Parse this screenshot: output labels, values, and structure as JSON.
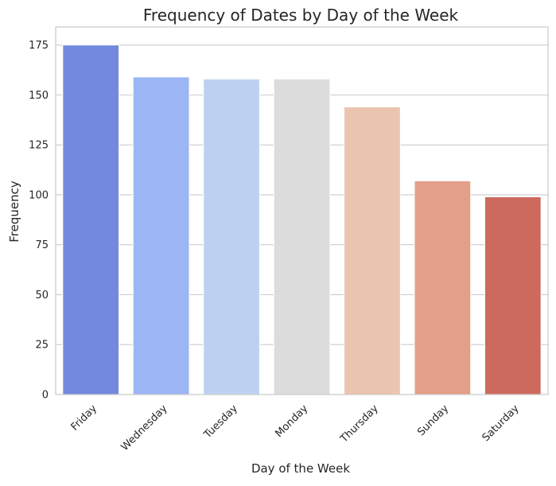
{
  "chart_data": {
    "type": "bar",
    "title": "Frequency of Dates by Day of the Week",
    "xlabel": "Day of the Week",
    "ylabel": "Frequency",
    "categories": [
      "Friday",
      "Wednesday",
      "Tuesday",
      "Monday",
      "Thursday",
      "Sunday",
      "Saturday"
    ],
    "values": [
      175,
      159,
      158,
      158,
      144,
      107,
      99
    ],
    "colors": [
      "#7389DD",
      "#9BB5F5",
      "#BED0F2",
      "#DCDCDC",
      "#EBC4B0",
      "#E39F87",
      "#CD6A5E"
    ],
    "ylim": [
      0,
      184
    ],
    "yticks": [
      0,
      25,
      50,
      75,
      100,
      125,
      150,
      175
    ],
    "grid": true,
    "grid_axis": "y",
    "grid_color": "#CCCCCC",
    "axes_edge_color": "#CCCCCC",
    "xtick_rotation_deg": 45
  }
}
